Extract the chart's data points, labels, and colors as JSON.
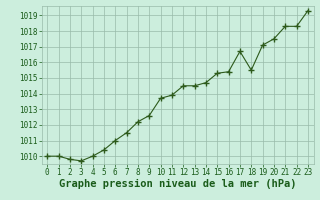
{
  "x": [
    0,
    1,
    2,
    3,
    4,
    5,
    6,
    7,
    8,
    9,
    10,
    11,
    12,
    13,
    14,
    15,
    16,
    17,
    18,
    19,
    20,
    21,
    22,
    23
  ],
  "y": [
    1010.0,
    1010.0,
    1009.8,
    1009.7,
    1010.0,
    1010.4,
    1011.0,
    1011.5,
    1012.2,
    1012.6,
    1013.7,
    1013.9,
    1014.5,
    1014.5,
    1014.7,
    1015.3,
    1015.4,
    1016.7,
    1015.5,
    1017.1,
    1017.5,
    1018.3,
    1018.3,
    1019.3
  ],
  "xlabel": "Graphe pression niveau de la mer (hPa)",
  "ylim": [
    1009.5,
    1019.6
  ],
  "xlim": [
    -0.5,
    23.5
  ],
  "yticks": [
    1010,
    1011,
    1012,
    1013,
    1014,
    1015,
    1016,
    1017,
    1018,
    1019
  ],
  "xticks": [
    0,
    1,
    2,
    3,
    4,
    5,
    6,
    7,
    8,
    9,
    10,
    11,
    12,
    13,
    14,
    15,
    16,
    17,
    18,
    19,
    20,
    21,
    22,
    23
  ],
  "line_color": "#2d5a1b",
  "marker_color": "#2d5a1b",
  "bg_color": "#cceedd",
  "grid_color": "#99bbaa",
  "xlabel_color": "#1a5c1a",
  "tick_color": "#1a5c1a",
  "xlabel_fontsize": 7.5,
  "tick_fontsize": 5.5
}
